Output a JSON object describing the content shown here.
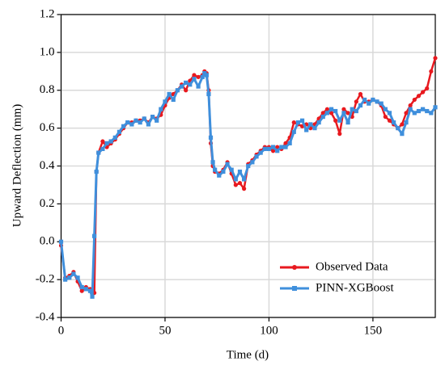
{
  "chart_data": {
    "type": "line",
    "xlabel": "Time (d)",
    "ylabel": "Upward Deflection (mm)",
    "x": [
      0,
      2,
      4,
      6,
      8,
      10,
      12,
      14,
      15,
      16,
      17,
      18,
      20,
      22,
      24,
      26,
      28,
      30,
      32,
      34,
      36,
      38,
      40,
      42,
      44,
      46,
      48,
      50,
      52,
      54,
      56,
      58,
      60,
      62,
      64,
      66,
      68,
      69,
      70,
      71,
      72,
      73,
      74,
      76,
      78,
      80,
      82,
      84,
      86,
      88,
      90,
      92,
      94,
      96,
      98,
      100,
      102,
      104,
      106,
      108,
      110,
      112,
      114,
      116,
      118,
      120,
      122,
      124,
      126,
      128,
      130,
      132,
      134,
      136,
      138,
      140,
      142,
      144,
      146,
      148,
      150,
      152,
      154,
      156,
      158,
      160,
      162,
      164,
      166,
      168,
      170,
      172,
      174,
      176,
      178,
      180
    ],
    "series": [
      {
        "name": "Observed Data",
        "color": "#e8191f",
        "marker": "circle",
        "values": [
          -0.02,
          -0.19,
          -0.18,
          -0.16,
          -0.21,
          -0.26,
          -0.24,
          -0.25,
          -0.28,
          -0.27,
          0.37,
          0.47,
          0.53,
          0.5,
          0.52,
          0.54,
          0.57,
          0.6,
          0.63,
          0.63,
          0.64,
          0.64,
          0.65,
          0.63,
          0.66,
          0.65,
          0.67,
          0.72,
          0.76,
          0.78,
          0.8,
          0.83,
          0.8,
          0.85,
          0.88,
          0.87,
          0.88,
          0.9,
          0.89,
          0.8,
          0.52,
          0.4,
          0.37,
          0.36,
          0.38,
          0.42,
          0.36,
          0.3,
          0.31,
          0.28,
          0.41,
          0.43,
          0.46,
          0.48,
          0.5,
          0.5,
          0.48,
          0.5,
          0.49,
          0.52,
          0.55,
          0.63,
          0.62,
          0.61,
          0.62,
          0.6,
          0.62,
          0.65,
          0.68,
          0.7,
          0.68,
          0.64,
          0.57,
          0.7,
          0.68,
          0.66,
          0.74,
          0.78,
          0.74,
          0.74,
          0.75,
          0.74,
          0.72,
          0.66,
          0.64,
          0.62,
          0.6,
          0.62,
          0.68,
          0.72,
          0.75,
          0.77,
          0.79,
          0.81,
          0.9,
          0.97
        ]
      },
      {
        "name": "PINN-XGBoost",
        "color": "#3f8fdc",
        "marker": "square",
        "values": [
          0.0,
          -0.2,
          -0.19,
          -0.17,
          -0.19,
          -0.24,
          -0.25,
          -0.26,
          -0.29,
          0.03,
          0.37,
          0.47,
          0.49,
          0.52,
          0.53,
          0.55,
          0.58,
          0.61,
          0.63,
          0.62,
          0.64,
          0.63,
          0.65,
          0.62,
          0.66,
          0.64,
          0.7,
          0.74,
          0.78,
          0.75,
          0.8,
          0.82,
          0.84,
          0.83,
          0.86,
          0.82,
          0.87,
          0.89,
          0.88,
          0.78,
          0.55,
          0.42,
          0.38,
          0.35,
          0.37,
          0.41,
          0.38,
          0.33,
          0.37,
          0.33,
          0.4,
          0.42,
          0.45,
          0.47,
          0.49,
          0.49,
          0.5,
          0.48,
          0.5,
          0.5,
          0.52,
          0.58,
          0.63,
          0.64,
          0.59,
          0.62,
          0.6,
          0.63,
          0.66,
          0.68,
          0.7,
          0.69,
          0.64,
          0.68,
          0.63,
          0.7,
          0.69,
          0.72,
          0.75,
          0.73,
          0.75,
          0.74,
          0.73,
          0.7,
          0.68,
          0.63,
          0.6,
          0.57,
          0.63,
          0.7,
          0.68,
          0.69,
          0.7,
          0.69,
          0.68,
          0.71
        ]
      }
    ],
    "xlim": [
      0,
      180
    ],
    "xticks": [
      0,
      50,
      100,
      150
    ],
    "ylim": [
      -0.4,
      1.2
    ],
    "yticks": [
      -0.4,
      -0.2,
      {
        "value": 0,
        "label": "0.0"
      },
      0.2,
      0.4,
      0.6,
      0.8,
      {
        "value": 1,
        "label": "1.0"
      },
      1.2
    ],
    "grid": true,
    "legend": "lower right"
  }
}
